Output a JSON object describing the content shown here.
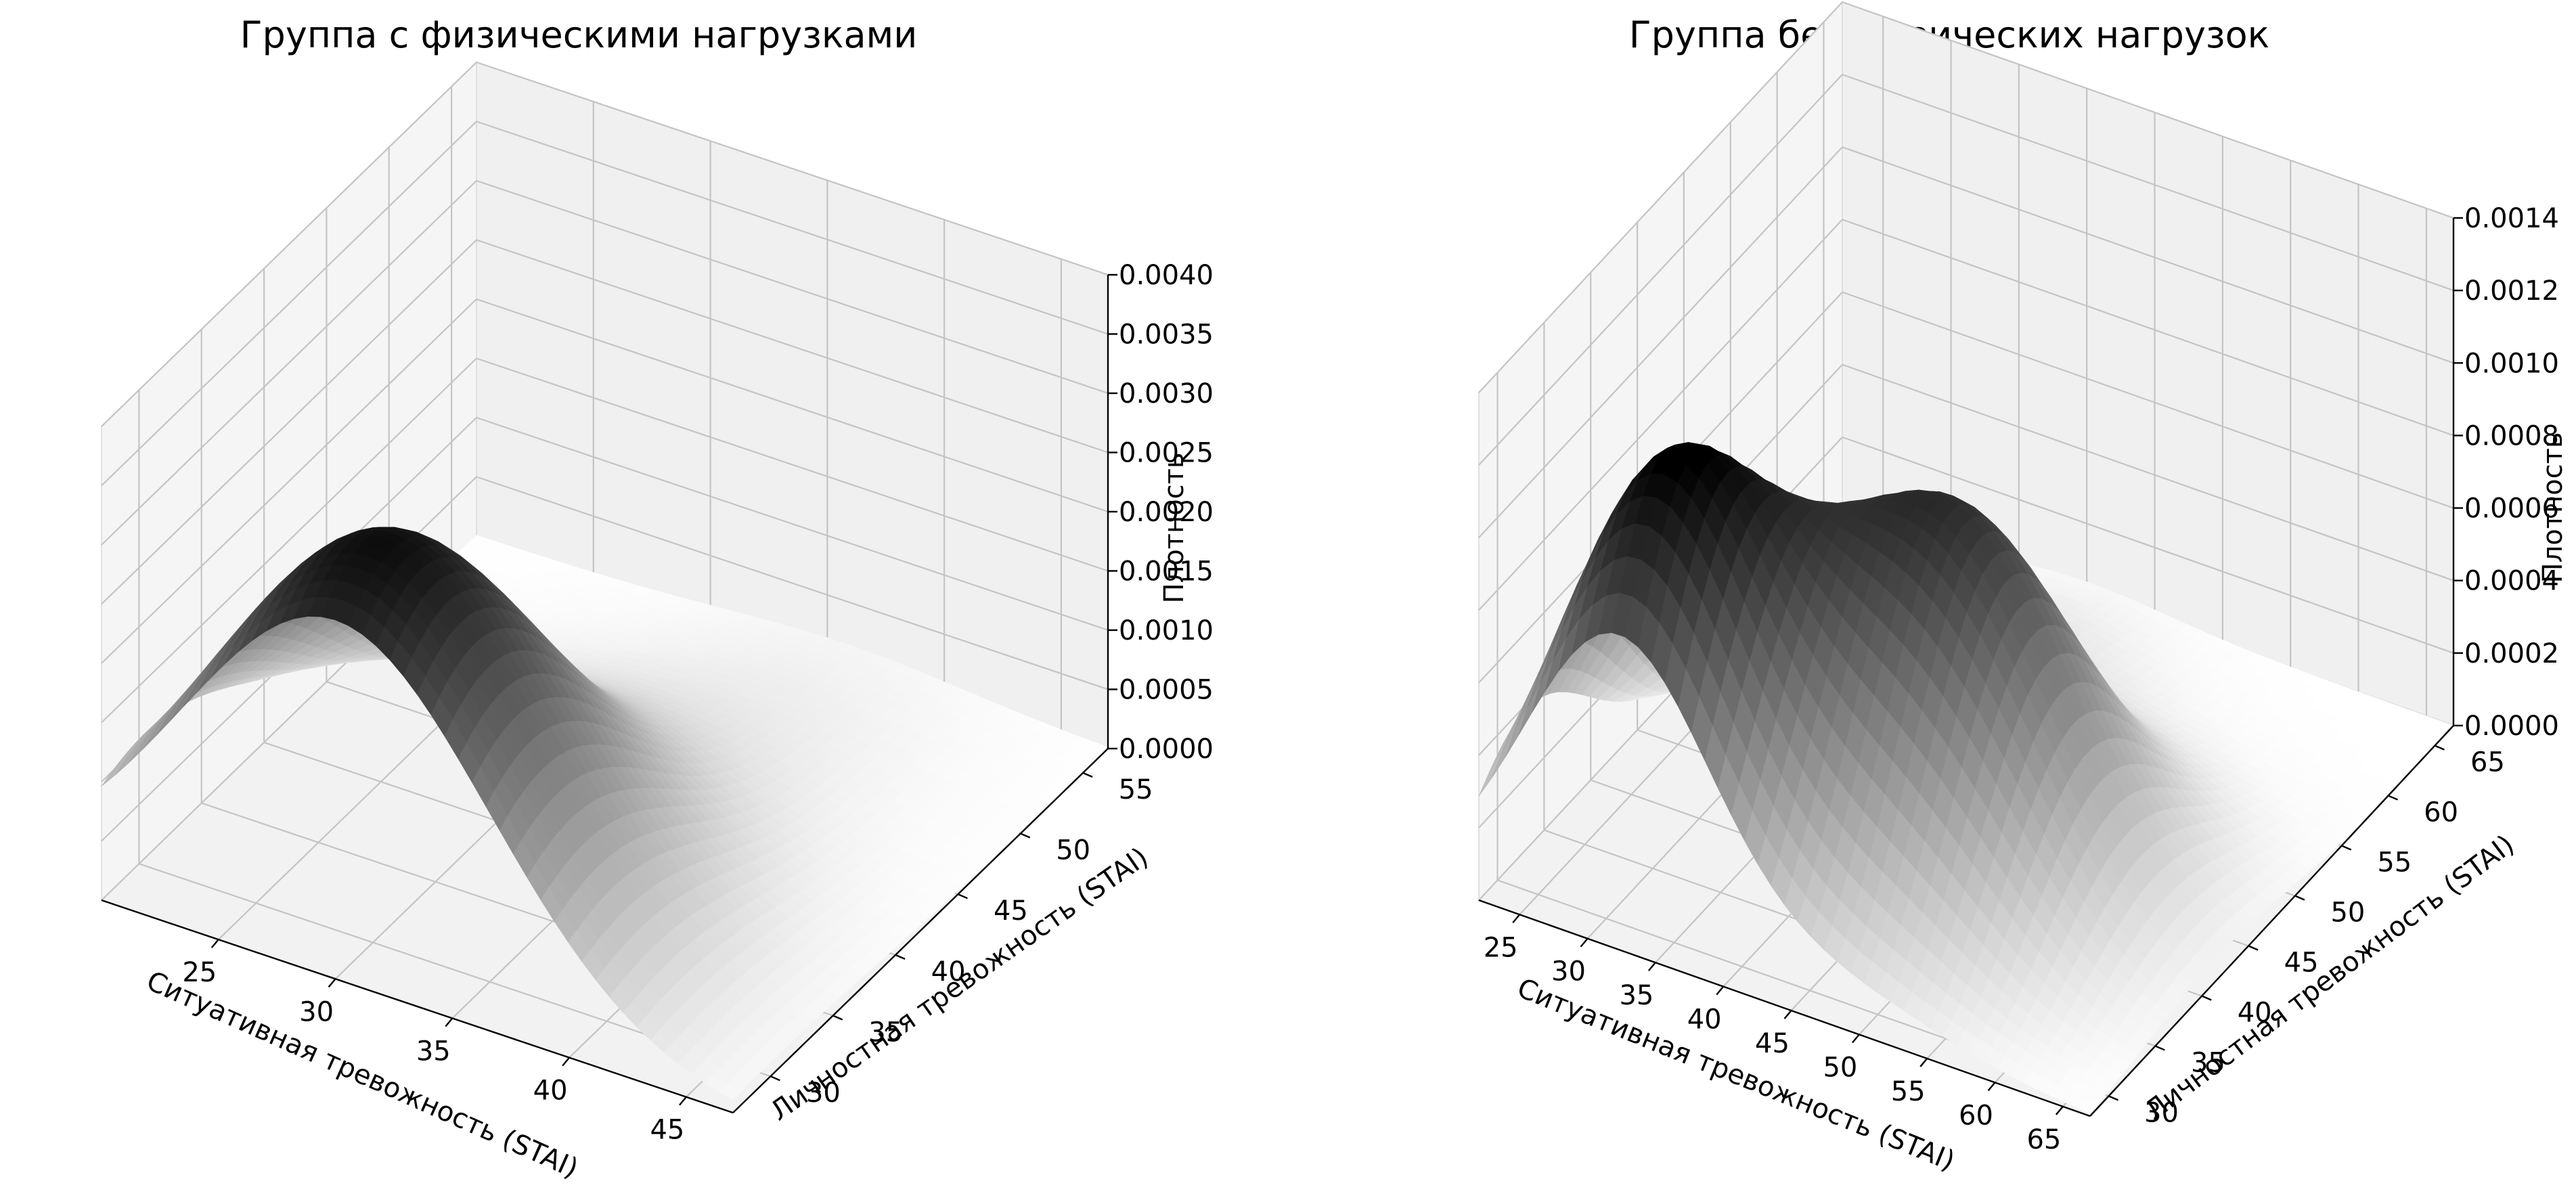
{
  "chart_data": [
    {
      "type": "surface",
      "title": "Группа с физическими нагрузками",
      "xlabel": "Ситуативная тревожность (STAI)",
      "ylabel": "Личностная тревожность (STAI)",
      "zlabel": "Плотность",
      "x_ticks": [
        25,
        30,
        35,
        40,
        45
      ],
      "y_ticks": [
        30,
        35,
        40,
        45,
        50,
        55
      ],
      "z_ticks": [
        "0.0000",
        "0.0005",
        "0.0010",
        "0.0015",
        "0.0020",
        "0.0025",
        "0.0030",
        "0.0035",
        "0.0040"
      ],
      "xlim": [
        20,
        47
      ],
      "ylim": [
        27,
        57
      ],
      "zlim": [
        0,
        0.004
      ],
      "grid": true,
      "colormap": "grayscale (white = low, black = high)",
      "surface_peak": {
        "x": 30,
        "y": 31,
        "z": 0.0033
      }
    },
    {
      "type": "surface",
      "title": "Группа без физических нагрузок",
      "xlabel": "Ситуативная тревожность (STAI)",
      "ylabel": "Личностная тревожность (STAI)",
      "zlabel": "Плотность",
      "x_ticks": [
        25,
        30,
        35,
        40,
        45,
        50,
        55,
        60,
        65
      ],
      "y_ticks": [
        30,
        35,
        40,
        45,
        50,
        55,
        60,
        65
      ],
      "z_ticks": [
        "0.0000",
        "0.0002",
        "0.0004",
        "0.0006",
        "0.0008",
        "0.0010",
        "0.0012",
        "0.0014"
      ],
      "xlim": [
        22,
        67
      ],
      "ylim": [
        28,
        67
      ],
      "zlim": [
        0,
        0.0014
      ],
      "grid": true,
      "colormap": "grayscale (white = low, black = high)",
      "surface_peaks": [
        {
          "x": 32,
          "y": 33,
          "z": 0.00118
        },
        {
          "x": 47,
          "y": 42,
          "z": 0.0011
        }
      ]
    }
  ]
}
